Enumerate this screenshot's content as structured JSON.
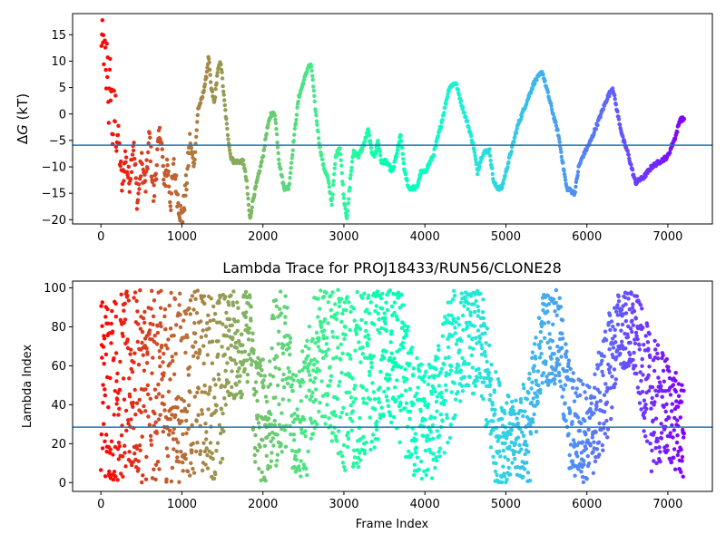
{
  "chart_data": [
    {
      "type": "scatter",
      "title": "",
      "xlabel": "",
      "ylabel": "ΔG (kT)",
      "ylabel_parts": {
        "delta": "Δ",
        "var": "G",
        "unit": " (kT)"
      },
      "xlim": [
        -350,
        7550
      ],
      "ylim": [
        -20.8,
        19
      ],
      "xticks": [
        0,
        1000,
        2000,
        3000,
        4000,
        5000,
        6000,
        7000
      ],
      "xtick_labels": [
        "0",
        "1000",
        "2000",
        "3000",
        "4000",
        "5000",
        "6000",
        "7000"
      ],
      "yticks": [
        -20,
        -15,
        -10,
        -5,
        0,
        5,
        10,
        15
      ],
      "ytick_labels": [
        "−20",
        "−15",
        "−10",
        "−5",
        "0",
        "5",
        "10",
        "15"
      ],
      "hline": {
        "y": -5.9,
        "color": "#1f77b4"
      },
      "colormap": "rainbow (red at frame 0 → violet at last frame)",
      "grid": false,
      "legend": "none",
      "trace_keypoints": [
        [
          0,
          18
        ],
        [
          20,
          10
        ],
        [
          40,
          15
        ],
        [
          60,
          5
        ],
        [
          80,
          12
        ],
        [
          100,
          0
        ],
        [
          120,
          8
        ],
        [
          140,
          -3
        ],
        [
          170,
          0
        ],
        [
          220,
          -5
        ],
        [
          260,
          -14
        ],
        [
          300,
          -8
        ],
        [
          350,
          -13
        ],
        [
          400,
          -5
        ],
        [
          450,
          -17
        ],
        [
          500,
          -9
        ],
        [
          550,
          -14
        ],
        [
          600,
          -4
        ],
        [
          650,
          -16
        ],
        [
          700,
          -7
        ],
        [
          740,
          -3
        ],
        [
          780,
          -14
        ],
        [
          820,
          -9
        ],
        [
          860,
          -17
        ],
        [
          900,
          -10
        ],
        [
          950,
          -16
        ],
        [
          1000,
          -20
        ],
        [
          1050,
          -14
        ],
        [
          1100,
          -5
        ],
        [
          1150,
          -10
        ],
        [
          1200,
          1
        ],
        [
          1250,
          3
        ],
        [
          1300,
          7
        ],
        [
          1330,
          11
        ],
        [
          1360,
          5
        ],
        [
          1400,
          2
        ],
        [
          1440,
          8
        ],
        [
          1480,
          10
        ],
        [
          1520,
          3
        ],
        [
          1560,
          -3
        ],
        [
          1600,
          -8
        ],
        [
          1640,
          -9
        ],
        [
          1700,
          -9
        ],
        [
          1760,
          -9
        ],
        [
          1800,
          -13
        ],
        [
          1840,
          -20
        ],
        [
          1880,
          -16
        ],
        [
          1940,
          -12
        ],
        [
          2000,
          -8
        ],
        [
          2050,
          -3
        ],
        [
          2100,
          0
        ],
        [
          2150,
          0
        ],
        [
          2200,
          -9
        ],
        [
          2260,
          -14
        ],
        [
          2320,
          -14
        ],
        [
          2380,
          -5
        ],
        [
          2440,
          3
        ],
        [
          2500,
          6
        ],
        [
          2560,
          9
        ],
        [
          2600,
          9
        ],
        [
          2640,
          2
        ],
        [
          2700,
          -6
        ],
        [
          2750,
          -10
        ],
        [
          2800,
          -12
        ],
        [
          2850,
          -17
        ],
        [
          2900,
          -8
        ],
        [
          2950,
          -6
        ],
        [
          3000,
          -16
        ],
        [
          3040,
          -20
        ],
        [
          3080,
          -12
        ],
        [
          3120,
          -7
        ],
        [
          3180,
          -8
        ],
        [
          3240,
          -6
        ],
        [
          3300,
          -3
        ],
        [
          3340,
          -7
        ],
        [
          3380,
          -8
        ],
        [
          3420,
          -5
        ],
        [
          3460,
          -9
        ],
        [
          3520,
          -9
        ],
        [
          3600,
          -11
        ],
        [
          3660,
          -7
        ],
        [
          3700,
          -4
        ],
        [
          3750,
          -11
        ],
        [
          3800,
          -14
        ],
        [
          3900,
          -14
        ],
        [
          3950,
          -11
        ],
        [
          4000,
          -11
        ],
        [
          4100,
          -8
        ],
        [
          4200,
          -2
        ],
        [
          4300,
          5
        ],
        [
          4380,
          6
        ],
        [
          4450,
          2
        ],
        [
          4550,
          -3
        ],
        [
          4600,
          -6
        ],
        [
          4650,
          -11
        ],
        [
          4700,
          -8
        ],
        [
          4750,
          -7
        ],
        [
          4800,
          -7
        ],
        [
          4850,
          -13
        ],
        [
          4900,
          -14
        ],
        [
          4950,
          -14
        ],
        [
          5050,
          -8
        ],
        [
          5150,
          -2
        ],
        [
          5250,
          2
        ],
        [
          5350,
          6
        ],
        [
          5450,
          8
        ],
        [
          5550,
          2
        ],
        [
          5650,
          -4
        ],
        [
          5750,
          -14
        ],
        [
          5850,
          -15
        ],
        [
          5900,
          -10
        ],
        [
          5950,
          -8
        ],
        [
          6050,
          -5
        ],
        [
          6150,
          -1
        ],
        [
          6250,
          3
        ],
        [
          6320,
          5
        ],
        [
          6380,
          0
        ],
        [
          6450,
          -5
        ],
        [
          6500,
          -7
        ],
        [
          6600,
          -13
        ],
        [
          6700,
          -12
        ],
        [
          6800,
          -10
        ],
        [
          6900,
          -9
        ],
        [
          7000,
          -8
        ],
        [
          7100,
          -4
        ],
        [
          7150,
          -1
        ],
        [
          7200,
          -1
        ]
      ]
    },
    {
      "type": "scatter",
      "title": "Lambda Trace for PROJ18433/RUN56/CLONE28",
      "xlabel": "Frame Index",
      "ylabel": "Lambda Index",
      "xlim": [
        -350,
        7550
      ],
      "ylim": [
        -4.5,
        103.5
      ],
      "xticks": [
        0,
        1000,
        2000,
        3000,
        4000,
        5000,
        6000,
        7000
      ],
      "xtick_labels": [
        "0",
        "1000",
        "2000",
        "3000",
        "4000",
        "5000",
        "6000",
        "7000"
      ],
      "yticks": [
        0,
        20,
        40,
        60,
        80,
        100
      ],
      "ytick_labels": [
        "0",
        "20",
        "40",
        "60",
        "80",
        "100"
      ],
      "hline": {
        "y": 28.5,
        "color": "#1f77b4"
      },
      "colormap": "rainbow (red at frame 0 → violet at last frame)",
      "grid": false,
      "legend": "none",
      "band_keypoints": [
        [
          0,
          0,
          98
        ],
        [
          600,
          0,
          99
        ],
        [
          1000,
          0,
          99
        ],
        [
          1200,
          5,
          99
        ],
        [
          1500,
          0,
          99
        ],
        [
          1550,
          45,
          99
        ],
        [
          1700,
          40,
          99
        ],
        [
          1850,
          55,
          99
        ],
        [
          1900,
          0,
          75
        ],
        [
          2050,
          0,
          60
        ],
        [
          2150,
          5,
          99
        ],
        [
          2300,
          20,
          99
        ],
        [
          2400,
          0,
          60
        ],
        [
          2550,
          2,
          75
        ],
        [
          2650,
          30,
          99
        ],
        [
          2800,
          30,
          99
        ],
        [
          2950,
          5,
          99
        ],
        [
          3100,
          5,
          99
        ],
        [
          3300,
          10,
          99
        ],
        [
          3500,
          30,
          99
        ],
        [
          3700,
          20,
          99
        ],
        [
          3850,
          0,
          70
        ],
        [
          4100,
          0,
          60
        ],
        [
          4300,
          20,
          99
        ],
        [
          4500,
          50,
          99
        ],
        [
          4700,
          40,
          99
        ],
        [
          4850,
          0,
          60
        ],
        [
          5100,
          0,
          40
        ],
        [
          5300,
          0,
          60
        ],
        [
          5450,
          50,
          99
        ],
        [
          5650,
          50,
          99
        ],
        [
          5800,
          0,
          60
        ],
        [
          6050,
          0,
          50
        ],
        [
          6250,
          20,
          85
        ],
        [
          6400,
          60,
          99
        ],
        [
          6600,
          50,
          99
        ],
        [
          6800,
          5,
          75
        ],
        [
          7000,
          10,
          65
        ],
        [
          7200,
          0,
          48
        ]
      ]
    }
  ]
}
